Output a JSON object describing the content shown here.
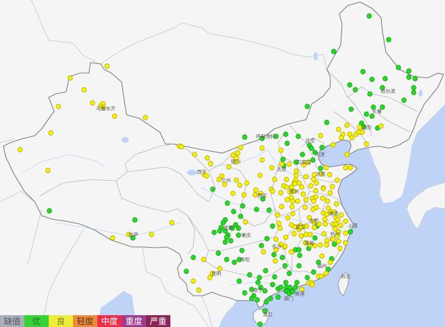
{
  "legend": [
    {
      "label": "缺值",
      "color": "#a9afba",
      "text_color": "#555555"
    },
    {
      "label": "优",
      "color": "#36d236",
      "text_color": "#2a6a2a"
    },
    {
      "label": "良",
      "color": "#eeee3a",
      "text_color": "#777722"
    },
    {
      "label": "轻度",
      "color": "#ee8a3c",
      "text_color": "#5a3a1a"
    },
    {
      "label": "中度",
      "color": "#ee2e46",
      "text_color": "#ffffff"
    },
    {
      "label": "重度",
      "color": "#9e3c8e",
      "text_color": "#ffffff"
    },
    {
      "label": "严重",
      "color": "#8a2456",
      "text_color": "#ffffff"
    }
  ],
  "map": {
    "land_color": "#f5f5f5",
    "sea_color": "#bfd3f7",
    "border_color": "#7f7f7f"
  },
  "cities": [
    {
      "name": "乌鲁木齐",
      "lon": 85.2,
      "lat": 43.52
    },
    {
      "name": "呼和浩特",
      "lon": 108.2,
      "lat": 40.32
    },
    {
      "name": "北京",
      "lon": 114.6,
      "lat": 39.84
    },
    {
      "name": "天津",
      "lon": 116.0,
      "lat": 38.24
    },
    {
      "name": "石家庄",
      "lon": 113.7,
      "lat": 37.36
    },
    {
      "name": "太原",
      "lon": 110.5,
      "lat": 36.56
    },
    {
      "name": "济南",
      "lon": 116.1,
      "lat": 36.0
    },
    {
      "name": "西宁",
      "lon": 99.0,
      "lat": 36.24
    },
    {
      "name": "兰州",
      "lon": 102.5,
      "lat": 35.28
    },
    {
      "name": "银川",
      "lon": 103.9,
      "lat": 37.44
    },
    {
      "name": "西安",
      "lon": 107.7,
      "lat": 33.52
    },
    {
      "name": "郑州",
      "lon": 112.3,
      "lat": 34.0
    },
    {
      "name": "成都",
      "lon": 102.8,
      "lat": 29.84
    },
    {
      "name": "重庆",
      "lon": 105.4,
      "lat": 28.96
    },
    {
      "name": "武汉",
      "lon": 113.2,
      "lat": 29.92
    },
    {
      "name": "合肥",
      "lon": 115.1,
      "lat": 30.64
    },
    {
      "name": "南京",
      "lon": 118.0,
      "lat": 31.44
    },
    {
      "name": "上海",
      "lon": 120.7,
      "lat": 30.08
    },
    {
      "name": "杭州",
      "lon": 118.2,
      "lat": 29.12
    },
    {
      "name": "长沙",
      "lon": 109.8,
      "lat": 27.68
    },
    {
      "name": "南昌",
      "lon": 114.5,
      "lat": 28.08
    },
    {
      "name": "福州",
      "lon": 116.3,
      "lat": 25.44
    },
    {
      "name": "贵阳",
      "lon": 105.2,
      "lat": 26.16
    },
    {
      "name": "昆明",
      "lon": 101.1,
      "lat": 24.56
    },
    {
      "name": "南宁",
      "lon": 107.1,
      "lat": 22.64
    },
    {
      "name": "香港",
      "lon": 113.1,
      "lat": 22.24
    },
    {
      "name": "澳门",
      "lon": 111.5,
      "lat": 21.68
    },
    {
      "name": "海口",
      "lon": 108.5,
      "lat": 19.84
    },
    {
      "name": "台北",
      "lon": 119.7,
      "lat": 24.24
    },
    {
      "name": "拉萨",
      "lon": 89.2,
      "lat": 29.04
    },
    {
      "name": "哈尔滨",
      "lon": 125.8,
      "lat": 45.52
    },
    {
      "name": "长春",
      "lon": 124.2,
      "lat": 43.2
    },
    {
      "name": "沈阳",
      "lon": 122.7,
      "lat": 41.36
    }
  ],
  "stations": [
    [
      123.1,
      54.16,
      1
    ],
    [
      125.9,
      51.44,
      1
    ],
    [
      118.0,
      50.08,
      1
    ],
    [
      122.2,
      47.76,
      1
    ],
    [
      123.5,
      46.88,
      1
    ],
    [
      125.4,
      46.96,
      1
    ],
    [
      127.3,
      48.24,
      1
    ],
    [
      128.8,
      47.84,
      1
    ],
    [
      128.8,
      47.12,
      1
    ],
    [
      129.7,
      46.96,
      1
    ],
    [
      125.0,
      45.92,
      1
    ],
    [
      129.5,
      45.92,
      1
    ],
    [
      129.5,
      45.36,
      1
    ],
    [
      128.1,
      44.48,
      1
    ],
    [
      123.2,
      45.2,
      1
    ],
    [
      120.3,
      46.24,
      1
    ],
    [
      121.1,
      45.68,
      1
    ],
    [
      114.2,
      43.76,
      1
    ],
    [
      120.5,
      43.44,
      1
    ],
    [
      123.7,
      43.68,
      1
    ],
    [
      125.0,
      43.68,
      1
    ],
    [
      122.7,
      42.88,
      1
    ],
    [
      123.5,
      42.64,
      1
    ],
    [
      117.0,
      41.92,
      1
    ],
    [
      122.0,
      41.84,
      1
    ],
    [
      122.3,
      41.44,
      1
    ],
    [
      124.3,
      41.28,
      1
    ],
    [
      105.2,
      40.24,
      1
    ],
    [
      107.7,
      40.08,
      1
    ],
    [
      109.7,
      40.32,
      1
    ],
    [
      111.1,
      40.56,
      1
    ],
    [
      112.9,
      40.32,
      1
    ],
    [
      111.3,
      39.52,
      1
    ],
    [
      114.5,
      39.28,
      1
    ],
    [
      114.8,
      38.96,
      1
    ],
    [
      116.3,
      39.04,
      1
    ],
    [
      115.3,
      38.48,
      1
    ],
    [
      113.5,
      38.24,
      1
    ],
    [
      112.6,
      37.36,
      1
    ],
    [
      115.0,
      37.6,
      1
    ],
    [
      110.7,
      37.68,
      1
    ],
    [
      110.8,
      36.96,
      1
    ],
    [
      116.1,
      36.64,
      1
    ],
    [
      77.1,
      31.76,
      1
    ],
    [
      89.4,
      30.72,
      1
    ],
    [
      89.1,
      28.64,
      1
    ],
    [
      100.6,
      34.24,
      1
    ],
    [
      102.7,
      32.64,
      1
    ],
    [
      104.9,
      32.32,
      1
    ],
    [
      103.6,
      31.68,
      1
    ],
    [
      107.8,
      33.12,
      1
    ],
    [
      106.9,
      31.92,
      1
    ],
    [
      108.7,
      31.84,
      1
    ],
    [
      104.6,
      31.12,
      1
    ],
    [
      102.4,
      30.72,
      1
    ],
    [
      102.1,
      30.4,
      1
    ],
    [
      103.9,
      30.16,
      1
    ],
    [
      101.8,
      29.84,
      1
    ],
    [
      101.6,
      29.44,
      1
    ],
    [
      102.4,
      29.44,
      1
    ],
    [
      100.8,
      29.28,
      1
    ],
    [
      104.3,
      29.76,
      1
    ],
    [
      103.4,
      29.76,
      1
    ],
    [
      102.8,
      28.96,
      1
    ],
    [
      102.6,
      28.72,
      1
    ],
    [
      104.3,
      28.96,
      1
    ],
    [
      103.2,
      28.32,
      1
    ],
    [
      102.4,
      28.16,
      1
    ],
    [
      101.4,
      26.88,
      1
    ],
    [
      104.8,
      27.2,
      1
    ],
    [
      107.6,
      27.76,
      1
    ],
    [
      108.4,
      28.56,
      1
    ],
    [
      109.2,
      30.0,
      1
    ],
    [
      115.6,
      30.0,
      1
    ],
    [
      115.3,
      28.64,
      1
    ],
    [
      118.1,
      27.92,
      1
    ],
    [
      120.4,
      29.36,
      1
    ],
    [
      112.5,
      27.28,
      1
    ],
    [
      113.0,
      27.28,
      1
    ],
    [
      114.4,
      27.44,
      1
    ],
    [
      109.4,
      26.72,
      1
    ],
    [
      110.6,
      26.4,
      1
    ],
    [
      97.8,
      26.4,
      1
    ],
    [
      96.8,
      24.8,
      1
    ],
    [
      102.6,
      26.16,
      1
    ],
    [
      103.7,
      25.84,
      1
    ],
    [
      104.4,
      26.16,
      1
    ],
    [
      111.0,
      25.44,
      1
    ],
    [
      108.2,
      24.88,
      1
    ],
    [
      109.5,
      24.16,
      1
    ],
    [
      107.3,
      24.08,
      1
    ],
    [
      105.9,
      24.4,
      1
    ],
    [
      104.4,
      23.68,
      1
    ],
    [
      107.1,
      23.52,
      1
    ],
    [
      107.5,
      22.96,
      1
    ],
    [
      106.2,
      22.72,
      1
    ],
    [
      105.2,
      22.32,
      1
    ],
    [
      106.5,
      22.0,
      1
    ],
    [
      106.2,
      21.68,
      1
    ],
    [
      107.0,
      21.52,
      1
    ],
    [
      108.1,
      22.56,
      1
    ],
    [
      109.2,
      23.28,
      1
    ],
    [
      110.0,
      22.8,
      1
    ],
    [
      110.4,
      22.96,
      1
    ],
    [
      111.1,
      23.52,
      1
    ],
    [
      111.2,
      22.96,
      1
    ],
    [
      111.7,
      22.96,
      1
    ],
    [
      112.5,
      22.96,
      1
    ],
    [
      112.7,
      23.52,
      1
    ],
    [
      111.1,
      22.56,
      1
    ],
    [
      111.4,
      22.48,
      1
    ],
    [
      111.6,
      22.24,
      1
    ],
    [
      112.1,
      22.48,
      1
    ],
    [
      110.0,
      21.84,
      1
    ],
    [
      108.9,
      21.68,
      1
    ],
    [
      108.3,
      21.28,
      1
    ],
    [
      108.1,
      20.24,
      1
    ],
    [
      107.4,
      18.72,
      1
    ],
    [
      111.6,
      24.56,
      1
    ],
    [
      113.0,
      25.44,
      1
    ],
    [
      113.1,
      26.64,
      1
    ],
    [
      114.2,
      24.08,
      1
    ],
    [
      115.1,
      24.72,
      1
    ],
    [
      115.8,
      25.84,
      1
    ],
    [
      117.7,
      26.24,
      1
    ],
    [
      117.2,
      25.04,
      1
    ],
    [
      85.4,
      48.4,
      2
    ],
    [
      80.1,
      47.04,
      2
    ],
    [
      82.1,
      45.68,
      2
    ],
    [
      78.4,
      43.76,
      2
    ],
    [
      83.3,
      44.16,
      2
    ],
    [
      84.5,
      43.84,
      2
    ],
    [
      84.8,
      44.08,
      2
    ],
    [
      84.9,
      43.68,
      2
    ],
    [
      86.5,
      42.64,
      2
    ],
    [
      90.9,
      42.48,
      2
    ],
    [
      77.3,
      40.72,
      2
    ],
    [
      72.9,
      38.8,
      2
    ],
    [
      76.9,
      36.4,
      2
    ],
    [
      88.5,
      29.04,
      2
    ],
    [
      86.2,
      28.64,
      2
    ],
    [
      91.8,
      29.04,
      2
    ],
    [
      94.7,
      30.4,
      2
    ],
    [
      95.8,
      39.2,
      2
    ],
    [
      96.1,
      39.12,
      2
    ],
    [
      98.0,
      38.24,
      2
    ],
    [
      99.8,
      37.84,
      2
    ],
    [
      100.3,
      37.2,
      2
    ],
    [
      99.4,
      35.92,
      2
    ],
    [
      99.7,
      35.76,
      2
    ],
    [
      101.9,
      35.76,
      2
    ],
    [
      101.5,
      35.36,
      2
    ],
    [
      102.3,
      34.8,
      2
    ],
    [
      103.5,
      33.76,
      2
    ],
    [
      102.9,
      36.8,
      2
    ],
    [
      104.6,
      39.04,
      2
    ],
    [
      104.2,
      38.4,
      2
    ],
    [
      103.5,
      38.16,
      2
    ],
    [
      104.0,
      37.84,
      2
    ],
    [
      104.0,
      37.36,
      2
    ],
    [
      107.7,
      38.96,
      2
    ],
    [
      107.7,
      37.6,
      2
    ],
    [
      110.4,
      38.72,
      2
    ],
    [
      111.6,
      37.12,
      2
    ],
    [
      110.5,
      37.12,
      2
    ],
    [
      109.1,
      36.72,
      2
    ],
    [
      116.1,
      40.4,
      2
    ],
    [
      118.7,
      41.12,
      2
    ],
    [
      119.9,
      41.6,
      2
    ],
    [
      119.3,
      40.56,
      2
    ],
    [
      120.3,
      40.56,
      2
    ],
    [
      120.6,
      40.16,
      2
    ],
    [
      119.1,
      40.16,
      2
    ],
    [
      121.2,
      40.56,
      2
    ],
    [
      121.6,
      40.8,
      2
    ],
    [
      121.7,
      41.36,
      2
    ],
    [
      122.1,
      40.8,
      2
    ],
    [
      124.8,
      41.52,
      2
    ],
    [
      122.7,
      39.44,
      2
    ],
    [
      119.9,
      38.24,
      2
    ],
    [
      117.9,
      39.36,
      2
    ],
    [
      119.7,
      36.72,
      2
    ],
    [
      120.4,
      36.72,
      2
    ],
    [
      116.9,
      36.72,
      2
    ],
    [
      114.3,
      37.36,
      2
    ],
    [
      113.7,
      37.04,
      2
    ],
    [
      112.6,
      36.32,
      2
    ],
    [
      112.6,
      35.84,
      2
    ],
    [
      114.0,
      35.68,
      2
    ],
    [
      115.2,
      35.92,
      2
    ],
    [
      116.2,
      36.0,
      2
    ],
    [
      117.4,
      35.92,
      2
    ],
    [
      118.5,
      35.28,
      2
    ],
    [
      117.8,
      34.56,
      2
    ],
    [
      116.5,
      34.4,
      2
    ],
    [
      115.1,
      35.36,
      2
    ],
    [
      112.5,
      35.28,
      2
    ],
    [
      113.0,
      34.96,
      2
    ],
    [
      112.3,
      34.96,
      2
    ],
    [
      111.2,
      35.36,
      2
    ],
    [
      109.5,
      35.36,
      2
    ],
    [
      107.4,
      35.84,
      2
    ],
    [
      105.5,
      34.96,
      2
    ],
    [
      104.0,
      35.28,
      2
    ],
    [
      104.5,
      34.72,
      2
    ],
    [
      105.1,
      33.6,
      2
    ],
    [
      106.8,
      34.16,
      2
    ],
    [
      106.7,
      33.6,
      2
    ],
    [
      107.5,
      33.76,
      2
    ],
    [
      109.0,
      34.24,
      2
    ],
    [
      109.2,
      34.0,
      2
    ],
    [
      110.4,
      33.84,
      2
    ],
    [
      110.8,
      34.64,
      2
    ],
    [
      111.2,
      34.48,
      2
    ],
    [
      111.9,
      34.48,
      2
    ],
    [
      112.4,
      34.88,
      2
    ],
    [
      111.7,
      33.92,
      2
    ],
    [
      112.3,
      34.0,
      2
    ],
    [
      113.4,
      34.48,
      2
    ],
    [
      113.6,
      33.68,
      2
    ],
    [
      114.7,
      34.64,
      2
    ],
    [
      115.5,
      34.96,
      2
    ],
    [
      115.4,
      34.08,
      2
    ],
    [
      116.5,
      34.32,
      2
    ],
    [
      117.5,
      33.84,
      2
    ],
    [
      115.4,
      33.36,
      2
    ],
    [
      116.4,
      33.2,
      2
    ],
    [
      114.9,
      33.2,
      2
    ],
    [
      114.0,
      33.04,
      2
    ],
    [
      111.3,
      33.04,
      2
    ],
    [
      111.9,
      33.28,
      2
    ],
    [
      112.1,
      32.88,
      2
    ],
    [
      112.8,
      32.88,
      2
    ],
    [
      110.5,
      32.24,
      2
    ],
    [
      112.0,
      32.24,
      2
    ],
    [
      113.9,
      32.16,
      2
    ],
    [
      115.1,
      32.88,
      2
    ],
    [
      115.5,
      32.16,
      2
    ],
    [
      115.0,
      31.92,
      2
    ],
    [
      117.1,
      32.88,
      2
    ],
    [
      118.4,
      32.56,
      2
    ],
    [
      117.2,
      32.08,
      2
    ],
    [
      116.5,
      31.52,
      2
    ],
    [
      117.6,
      31.68,
      2
    ],
    [
      118.1,
      31.6,
      2
    ],
    [
      119.1,
      31.28,
      2
    ],
    [
      118.3,
      30.96,
      2
    ],
    [
      117.0,
      31.36,
      2
    ],
    [
      116.7,
      30.8,
      2
    ],
    [
      116.8,
      30.24,
      2
    ],
    [
      117.9,
      30.24,
      2
    ],
    [
      118.3,
      30.24,
      2
    ],
    [
      119.0,
      30.08,
      2
    ],
    [
      119.7,
      30.56,
      2
    ],
    [
      118.6,
      30.72,
      2
    ],
    [
      119.7,
      29.2,
      2
    ],
    [
      118.7,
      29.36,
      2
    ],
    [
      118.2,
      29.68,
      2
    ],
    [
      118.5,
      28.88,
      2
    ],
    [
      117.8,
      28.48,
      2
    ],
    [
      117.0,
      28.32,
      2
    ],
    [
      116.1,
      27.84,
      2
    ],
    [
      114.6,
      27.84,
      2
    ],
    [
      114.6,
      29.04,
      2
    ],
    [
      114.0,
      29.04,
      2
    ],
    [
      113.3,
      28.88,
      2
    ],
    [
      113.0,
      29.6,
      2
    ],
    [
      112.4,
      29.92,
      2
    ],
    [
      111.9,
      30.16,
      2
    ],
    [
      112.3,
      29.12,
      2
    ],
    [
      111.1,
      28.72,
      2
    ],
    [
      110.3,
      29.76,
      2
    ],
    [
      110.1,
      30.32,
      2
    ],
    [
      111.4,
      30.96,
      2
    ],
    [
      112.1,
      31.44,
      2
    ],
    [
      109.9,
      31.28,
      2
    ],
    [
      114.5,
      30.96,
      2
    ],
    [
      115.1,
      30.48,
      2
    ],
    [
      115.9,
      30.24,
      2
    ],
    [
      115.2,
      29.84,
      2
    ],
    [
      114.1,
      30.0,
      2
    ],
    [
      113.2,
      30.08,
      2
    ],
    [
      119.7,
      28.08,
      2
    ],
    [
      118.9,
      27.44,
      2
    ],
    [
      117.0,
      27.84,
      2
    ],
    [
      109.7,
      28.48,
      2
    ],
    [
      110.4,
      27.92,
      2
    ],
    [
      110.9,
      27.6,
      2
    ],
    [
      109.7,
      27.28,
      2
    ],
    [
      107.9,
      27.04,
      2
    ],
    [
      111.9,
      27.04,
      2
    ],
    [
      105.3,
      30.48,
      2
    ],
    [
      113.6,
      29.92,
      2
    ],
    [
      116.6,
      29.12,
      2
    ],
    [
      99.3,
      26.16,
      2
    ],
    [
      100.5,
      24.56,
      2
    ],
    [
      100.2,
      24.08,
      2
    ],
    [
      101.6,
      25.12,
      2
    ],
    [
      97.8,
      23.68,
      2
    ],
    [
      98.6,
      22.64,
      2
    ],
    [
      111.0,
      27.68,
      2
    ],
    [
      109.6,
      26.0,
      2
    ],
    [
      113.4,
      22.72,
      2
    ],
    [
      114.4,
      23.44,
      2
    ],
    [
      114.8,
      23.52,
      2
    ],
    [
      114.9,
      23.28,
      2
    ],
    [
      115.8,
      24.24,
      2
    ],
    [
      116.2,
      24.24,
      2
    ],
    [
      116.9,
      24.56,
      2
    ],
    [
      116.3,
      26.56,
      2
    ],
    [
      117.5,
      25.84,
      2
    ],
    [
      115.3,
      27.76,
      2
    ],
    [
      113.9,
      28.08,
      2
    ],
    [
      117.9,
      28.48,
      2
    ],
    [
      118.7,
      28.24,
      2
    ],
    [
      113.2,
      29.84,
      2
    ]
  ]
}
